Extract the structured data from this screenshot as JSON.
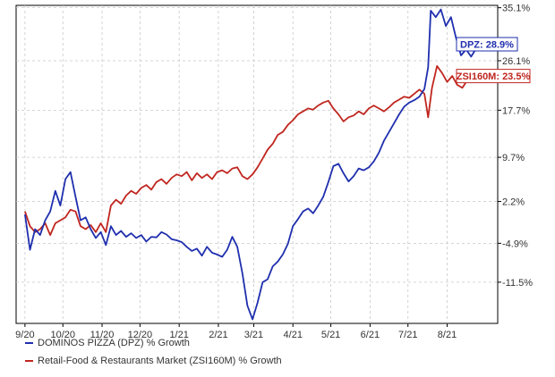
{
  "chart_data": {
    "type": "line",
    "title": "",
    "xlabel": "",
    "ylabel": "",
    "x_tick_labels": [
      "9/20",
      "10/20",
      "11/20",
      "12/20",
      "1/21",
      "2/21",
      "3/21",
      "4/21",
      "5/21",
      "6/21",
      "7/21",
      "8/21"
    ],
    "y_tick_labels": [
      "35.1%",
      "26.1%",
      "17.7%",
      "9.7%",
      "2.2%",
      "-4.9%",
      "-11.5%"
    ],
    "y_ticks": [
      35.1,
      26.1,
      17.7,
      9.7,
      2.2,
      -4.9,
      -11.5
    ],
    "ylim": [
      -18.5,
      35.5
    ],
    "grid": true,
    "legend_position": "bottom-left",
    "series": [
      {
        "name": "DOMINOS PIZZA (DPZ) % Growth",
        "color": "#1f2fae",
        "end_label": "DPZ: 28.9%",
        "points": [
          [
            "9/1/2020",
            0.0
          ],
          [
            "9/5/2020",
            -6.0
          ],
          [
            "9/9/2020",
            -2.5
          ],
          [
            "9/13/2020",
            -3.5
          ],
          [
            "9/17/2020",
            -1.0
          ],
          [
            "9/21/2020",
            0.5
          ],
          [
            "9/25/2020",
            4.0
          ],
          [
            "9/29/2020",
            1.5
          ],
          [
            "10/3/2020",
            6.0
          ],
          [
            "10/7/2020",
            7.2
          ],
          [
            "10/11/2020",
            3.0
          ],
          [
            "10/15/2020",
            -1.0
          ],
          [
            "10/19/2020",
            -0.5
          ],
          [
            "10/23/2020",
            -2.5
          ],
          [
            "10/27/2020",
            -4.0
          ],
          [
            "10/31/2020",
            -3.0
          ],
          [
            "11/4/2020",
            -5.2
          ],
          [
            "11/8/2020",
            -2.0
          ],
          [
            "11/12/2020",
            -3.5
          ],
          [
            "11/16/2020",
            -2.8
          ],
          [
            "11/20/2020",
            -3.8
          ],
          [
            "11/24/2020",
            -3.2
          ],
          [
            "11/28/2020",
            -4.0
          ],
          [
            "12/2/2020",
            -3.5
          ],
          [
            "12/6/2020",
            -4.6
          ],
          [
            "12/10/2020",
            -3.8
          ],
          [
            "12/14/2020",
            -3.9
          ],
          [
            "12/18/2020",
            -3.0
          ],
          [
            "12/22/2020",
            -3.4
          ],
          [
            "12/26/2020",
            -4.2
          ],
          [
            "12/30/2020",
            -4.4
          ],
          [
            "1/3/2021",
            -4.7
          ],
          [
            "1/7/2021",
            -5.5
          ],
          [
            "1/11/2021",
            -6.2
          ],
          [
            "1/15/2021",
            -5.8
          ],
          [
            "1/19/2021",
            -7.0
          ],
          [
            "1/23/2021",
            -5.5
          ],
          [
            "1/27/2021",
            -6.5
          ],
          [
            "1/31/2021",
            -6.8
          ],
          [
            "2/4/2021",
            -7.2
          ],
          [
            "2/8/2021",
            -6.0
          ],
          [
            "2/12/2021",
            -3.8
          ],
          [
            "2/16/2021",
            -5.5
          ],
          [
            "2/20/2021",
            -10.0
          ],
          [
            "2/24/2021",
            -15.5
          ],
          [
            "2/28/2021",
            -17.8
          ],
          [
            "3/4/2021",
            -15.0
          ],
          [
            "3/8/2021",
            -11.5
          ],
          [
            "3/12/2021",
            -11.0
          ],
          [
            "3/16/2021",
            -8.8
          ],
          [
            "3/20/2021",
            -8.0
          ],
          [
            "3/24/2021",
            -6.8
          ],
          [
            "3/28/2021",
            -5.0
          ],
          [
            "4/1/2021",
            -2.0
          ],
          [
            "4/5/2021",
            -0.8
          ],
          [
            "4/9/2021",
            0.5
          ],
          [
            "4/13/2021",
            1.0
          ],
          [
            "4/17/2021",
            0.2
          ],
          [
            "4/21/2021",
            1.5
          ],
          [
            "4/25/2021",
            3.0
          ],
          [
            "4/29/2021",
            5.5
          ],
          [
            "5/3/2021",
            8.2
          ],
          [
            "5/7/2021",
            8.6
          ],
          [
            "5/11/2021",
            7.0
          ],
          [
            "5/15/2021",
            5.6
          ],
          [
            "5/19/2021",
            6.5
          ],
          [
            "5/23/2021",
            7.8
          ],
          [
            "5/27/2021",
            7.5
          ],
          [
            "5/31/2021",
            8.0
          ],
          [
            "6/4/2021",
            9.0
          ],
          [
            "6/8/2021",
            10.5
          ],
          [
            "6/12/2021",
            12.5
          ],
          [
            "6/16/2021",
            14.0
          ],
          [
            "6/20/2021",
            15.5
          ],
          [
            "6/24/2021",
            17.0
          ],
          [
            "6/28/2021",
            18.3
          ],
          [
            "7/2/2021",
            19.0
          ],
          [
            "7/6/2021",
            19.4
          ],
          [
            "7/10/2021",
            20.0
          ],
          [
            "7/14/2021",
            21.3
          ],
          [
            "7/17/2021",
            25.0
          ],
          [
            "7/19/2021",
            34.6
          ],
          [
            "7/23/2021",
            33.5
          ],
          [
            "7/27/2021",
            34.8
          ],
          [
            "7/31/2021",
            32.0
          ],
          [
            "8/4/2021",
            33.5
          ],
          [
            "8/8/2021",
            30.0
          ],
          [
            "8/12/2021",
            27.0
          ],
          [
            "8/16/2021",
            28.0
          ],
          [
            "8/20/2021",
            26.8
          ],
          [
            "8/24/2021",
            28.2
          ],
          [
            "8/28/2021",
            28.9
          ]
        ]
      },
      {
        "name": "Retail-Food & Restaurants Market (ZSI160M) % Growth",
        "color": "#c0261f",
        "end_label": "ZSI160M: 23.5%",
        "points": [
          [
            "9/1/2020",
            0.5
          ],
          [
            "9/5/2020",
            -2.0
          ],
          [
            "9/9/2020",
            -3.0
          ],
          [
            "9/13/2020",
            -2.5
          ],
          [
            "9/17/2020",
            -1.5
          ],
          [
            "9/21/2020",
            -3.5
          ],
          [
            "9/25/2020",
            -1.5
          ],
          [
            "9/29/2020",
            -1.0
          ],
          [
            "10/3/2020",
            -0.5
          ],
          [
            "10/7/2020",
            0.8
          ],
          [
            "10/11/2020",
            0.5
          ],
          [
            "10/15/2020",
            -2.0
          ],
          [
            "10/19/2020",
            -2.5
          ],
          [
            "10/23/2020",
            -1.8
          ],
          [
            "10/27/2020",
            -3.0
          ],
          [
            "10/31/2020",
            -1.5
          ],
          [
            "11/4/2020",
            -3.0
          ],
          [
            "11/8/2020",
            1.5
          ],
          [
            "11/12/2020",
            2.5
          ],
          [
            "11/16/2020",
            1.8
          ],
          [
            "11/20/2020",
            3.2
          ],
          [
            "11/24/2020",
            4.0
          ],
          [
            "11/28/2020",
            3.5
          ],
          [
            "12/2/2020",
            4.5
          ],
          [
            "12/6/2020",
            5.0
          ],
          [
            "12/10/2020",
            4.2
          ],
          [
            "12/14/2020",
            5.5
          ],
          [
            "12/18/2020",
            6.0
          ],
          [
            "12/22/2020",
            5.2
          ],
          [
            "12/26/2020",
            6.2
          ],
          [
            "12/30/2020",
            6.8
          ],
          [
            "1/3/2021",
            6.5
          ],
          [
            "1/7/2021",
            7.2
          ],
          [
            "1/11/2021",
            5.8
          ],
          [
            "1/15/2021",
            7.0
          ],
          [
            "1/19/2021",
            6.2
          ],
          [
            "1/23/2021",
            6.8
          ],
          [
            "1/27/2021",
            6.0
          ],
          [
            "1/31/2021",
            7.2
          ],
          [
            "2/4/2021",
            7.5
          ],
          [
            "2/8/2021",
            7.0
          ],
          [
            "2/12/2021",
            7.8
          ],
          [
            "2/16/2021",
            8.0
          ],
          [
            "2/20/2021",
            6.5
          ],
          [
            "2/24/2021",
            6.0
          ],
          [
            "2/28/2021",
            6.8
          ],
          [
            "3/4/2021",
            8.0
          ],
          [
            "3/8/2021",
            9.5
          ],
          [
            "3/12/2021",
            11.0
          ],
          [
            "3/16/2021",
            12.0
          ],
          [
            "3/20/2021",
            13.5
          ],
          [
            "3/24/2021",
            14.0
          ],
          [
            "3/28/2021",
            15.2
          ],
          [
            "4/1/2021",
            16.0
          ],
          [
            "4/5/2021",
            17.0
          ],
          [
            "4/9/2021",
            17.5
          ],
          [
            "4/13/2021",
            18.0
          ],
          [
            "4/17/2021",
            17.8
          ],
          [
            "4/21/2021",
            18.5
          ],
          [
            "4/25/2021",
            19.0
          ],
          [
            "4/29/2021",
            19.3
          ],
          [
            "5/3/2021",
            18.0
          ],
          [
            "5/7/2021",
            17.0
          ],
          [
            "5/11/2021",
            15.8
          ],
          [
            "5/15/2021",
            16.5
          ],
          [
            "5/19/2021",
            16.8
          ],
          [
            "5/23/2021",
            17.5
          ],
          [
            "5/27/2021",
            17.0
          ],
          [
            "5/31/2021",
            18.0
          ],
          [
            "6/4/2021",
            18.5
          ],
          [
            "6/8/2021",
            18.0
          ],
          [
            "6/12/2021",
            17.5
          ],
          [
            "6/16/2021",
            18.2
          ],
          [
            "6/20/2021",
            19.0
          ],
          [
            "6/24/2021",
            19.5
          ],
          [
            "6/28/2021",
            20.0
          ],
          [
            "7/2/2021",
            19.8
          ],
          [
            "7/6/2021",
            20.5
          ],
          [
            "7/10/2021",
            21.2
          ],
          [
            "7/14/2021",
            20.5
          ],
          [
            "7/17/2021",
            16.5
          ],
          [
            "7/20/2021",
            21.5
          ],
          [
            "7/24/2021",
            25.2
          ],
          [
            "7/28/2021",
            24.0
          ],
          [
            "8/1/2021",
            22.5
          ],
          [
            "8/5/2021",
            23.5
          ],
          [
            "8/9/2021",
            22.0
          ],
          [
            "8/13/2021",
            21.5
          ],
          [
            "8/17/2021",
            22.8
          ],
          [
            "8/21/2021",
            22.5
          ],
          [
            "8/25/2021",
            23.2
          ],
          [
            "8/28/2021",
            23.5
          ]
        ]
      }
    ]
  }
}
